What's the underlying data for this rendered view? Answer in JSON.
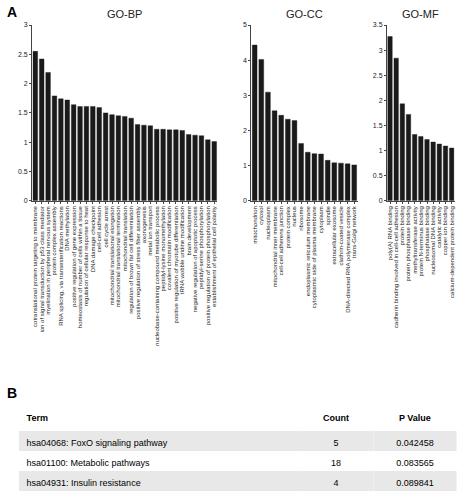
{
  "chart_data": [
    {
      "type": "bar",
      "title": "GO-BP",
      "annotations": [
        "A"
      ],
      "categories": [
        "cotranslational protein targeting to membrane",
        "ion of signal transduction by p53 class mediator",
        "myelination in peripheral nervous system",
        "protein complex assembly",
        "RNA splicing, via transesterification reactions",
        "DNA methylation",
        "positive regulation of gene expression",
        "homeostasis of number of cells within a tissue",
        "regulation of cellular response to heat",
        "DNA damage checkpoint",
        "cell-cell adhesion",
        "cell cycle arrest",
        "mitochondrial translational elongation",
        "mitochondrial translational termination",
        "mitochondrial translation",
        "regulation of brown fat cell differentiation",
        "positive regulation of stress fiber assembly",
        "axonogenesis",
        "metal ion transport",
        "nucleobase-containing compound metabolic process",
        "peptidyl-lysine monomethylation",
        "covalent chromatin modification",
        "positive regulation of myotube differentiation",
        "tRNA wobble uridine modification",
        "brain development",
        "negative regulation of apoptotic process",
        "peptidyl-serine phosphorylation",
        "positive regulation of protein phosphorylation",
        "establishment of epithelial cell polarity"
      ],
      "values": [
        2.55,
        2.42,
        2.19,
        1.79,
        1.74,
        1.72,
        1.64,
        1.61,
        1.61,
        1.61,
        1.59,
        1.5,
        1.47,
        1.45,
        1.44,
        1.41,
        1.3,
        1.29,
        1.28,
        1.22,
        1.22,
        1.21,
        1.21,
        1.2,
        1.13,
        1.12,
        1.11,
        1.04,
        1.01
      ],
      "color": "#1a1a1a",
      "ylim": [
        0,
        3
      ],
      "yticks": [
        0,
        0.5,
        1,
        1.5,
        2,
        2.5,
        3
      ],
      "grid": false
    },
    {
      "type": "bar",
      "title": "GO-CC",
      "categories": [
        "mitochondrion",
        "cytosol",
        "nucleoplasm",
        "mitochondrial inner membrane",
        "cell-cell adherens junction",
        "protein complex",
        "nucleus",
        "ribosome",
        "endoplasmic reticulum membrane",
        "cytoplasmic side of plasma membrane",
        "cytoplasm",
        "spindle",
        "extracellular exosome",
        "clathrin-coated vesicle",
        "DNA-directed RNA polymerase complex",
        "trans-Golgi network"
      ],
      "values": [
        4.43,
        4.02,
        3.09,
        2.56,
        2.43,
        2.32,
        2.28,
        1.63,
        1.38,
        1.34,
        1.33,
        1.15,
        1.08,
        1.07,
        1.05,
        1.02
      ],
      "color": "#1a1a1a",
      "ylim": [
        0,
        5
      ],
      "yticks": [
        0,
        1,
        2,
        3,
        4,
        5
      ],
      "grid": false
    },
    {
      "type": "bar",
      "title": "GO-MF",
      "categories": [
        "poly(A) RNA binding",
        "cadherin binding involved in cell-cell adhesion",
        "protein binding",
        "protein phosphatase binding",
        "methyltransferase activity",
        "protein N-terminus binding",
        "phosphatase binding",
        "nucleosomal DNA binding",
        "catalytic activity",
        "copper ion binding",
        "calcium-dependent protein binding"
      ],
      "values": [
        3.27,
        2.84,
        1.93,
        1.72,
        1.32,
        1.28,
        1.22,
        1.17,
        1.13,
        1.09,
        1.05
      ],
      "color": "#1a1a1a",
      "ylim": [
        0,
        3.5
      ],
      "yticks": [
        0,
        0.5,
        1,
        1.5,
        2,
        2.5,
        3,
        3.5
      ],
      "grid": false
    },
    {
      "type": "table",
      "annotations": [
        "B"
      ],
      "headers": [
        "Term",
        "Count",
        "P Value"
      ],
      "rows": [
        [
          "hsa04068: FoxO signaling pathway",
          "5",
          "0.042458"
        ],
        [
          "hsa01100: Metabolic pathways",
          "18",
          "0.083565"
        ],
        [
          "hsa04931: Insulin resistance",
          "4",
          "0.089841"
        ]
      ]
    }
  ]
}
